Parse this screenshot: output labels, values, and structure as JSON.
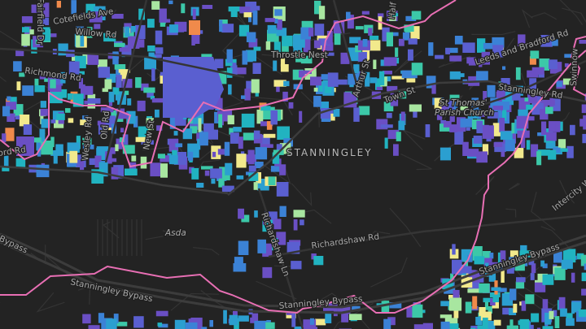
{
  "map": {
    "place_label": "STANNINGLEY",
    "colors": {
      "background": "#232323",
      "roads": "#3a3a3a",
      "major_roads": "#4a4a4a",
      "boundary": "#e86fb4",
      "buildings": [
        "#6a4fc4",
        "#5a5fd0",
        "#3b82d6",
        "#2b9fd0",
        "#21b3c0",
        "#3cc8a8",
        "#a8e6a0",
        "#f2e98c",
        "#f08a4b"
      ]
    },
    "road_labels": [
      {
        "id": "cotefields",
        "text": "Cotefields Ave"
      },
      {
        "id": "willow",
        "text": "Willow Rd"
      },
      {
        "id": "fairfield",
        "text": "Fairfield Dr"
      },
      {
        "id": "richmond",
        "text": "Richmond Rd"
      },
      {
        "id": "wesley",
        "text": "Wesley Rd"
      },
      {
        "id": "oldrd",
        "text": "Old Rd"
      },
      {
        "id": "newst",
        "text": "New St"
      },
      {
        "id": "ordrd",
        "text": "ord Rd"
      },
      {
        "id": "throstle",
        "text": "Throstle Nest"
      },
      {
        "id": "arthur",
        "text": "Arthur St"
      },
      {
        "id": "halfmile",
        "text": "Half Mi"
      },
      {
        "id": "townst",
        "text": "Town St"
      },
      {
        "id": "leeds",
        "text": "Leeds and Bradford Rd"
      },
      {
        "id": "swinnow",
        "text": "Swinnow"
      },
      {
        "id": "stanrd",
        "text": "Stanningley Rd"
      },
      {
        "id": "richshawln",
        "text": "Richardshaw Ln"
      },
      {
        "id": "richshawrd",
        "text": "Richardshaw Rd"
      },
      {
        "id": "intercity",
        "text": "Intercity W"
      },
      {
        "id": "bypass1",
        "text": "Bypass"
      },
      {
        "id": "bypass2",
        "text": "Stanningley Bypass"
      },
      {
        "id": "bypass3",
        "text": "Stanningley Bypass"
      },
      {
        "id": "bypass4",
        "text": "Stanningley Bypass"
      }
    ],
    "poi_labels": [
      {
        "id": "church",
        "text": "St Thomas' Parish Church"
      },
      {
        "id": "asda",
        "text": "Asda"
      }
    ]
  }
}
